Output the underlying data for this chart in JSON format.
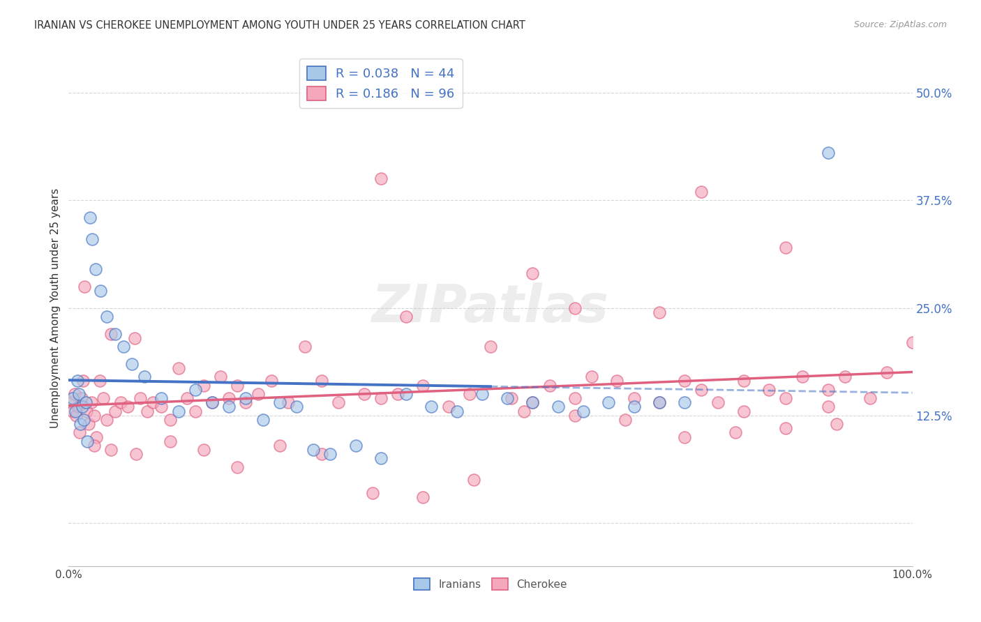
{
  "title": "IRANIAN VS CHEROKEE UNEMPLOYMENT AMONG YOUTH UNDER 25 YEARS CORRELATION CHART",
  "source": "Source: ZipAtlas.com",
  "ylabel": "Unemployment Among Youth under 25 years",
  "xlim": [
    0,
    100
  ],
  "ylim": [
    -5,
    55
  ],
  "yticks": [
    0,
    12.5,
    25.0,
    37.5,
    50.0
  ],
  "ytick_labels": [
    "",
    "12.5%",
    "25.0%",
    "37.5%",
    "50.0%"
  ],
  "grid_color": "#cccccc",
  "background_color": "#ffffff",
  "iranian_face_color": "#a8c8e8",
  "cherokee_face_color": "#f5a8bc",
  "iranian_edge_color": "#4472c4",
  "cherokee_edge_color": "#e06080",
  "watermark": "ZIPatlas",
  "R_iranian": 0.038,
  "N_iranian": 44,
  "R_cherokee": 0.186,
  "N_cherokee": 96,
  "iranian_x": [
    0.5,
    0.8,
    1.0,
    1.2,
    1.4,
    1.6,
    1.8,
    2.0,
    2.2,
    2.5,
    2.8,
    3.2,
    3.8,
    4.5,
    5.5,
    6.5,
    7.5,
    9.0,
    11.0,
    13.0,
    15.0,
    17.0,
    19.0,
    21.0,
    23.0,
    25.0,
    27.0,
    29.0,
    31.0,
    34.0,
    37.0,
    40.0,
    43.0,
    46.0,
    49.0,
    52.0,
    55.0,
    58.0,
    61.0,
    64.0,
    67.0,
    70.0,
    73.0,
    90.0
  ],
  "iranian_y": [
    14.5,
    13.0,
    16.5,
    15.0,
    11.5,
    13.5,
    12.0,
    14.0,
    9.5,
    35.5,
    33.0,
    29.5,
    27.0,
    24.0,
    22.0,
    20.5,
    18.5,
    17.0,
    14.5,
    13.0,
    15.5,
    14.0,
    13.5,
    14.5,
    12.0,
    14.0,
    13.5,
    8.5,
    8.0,
    9.0,
    7.5,
    15.0,
    13.5,
    13.0,
    15.0,
    14.5,
    14.0,
    13.5,
    13.0,
    14.0,
    13.5,
    14.0,
    14.0,
    43.0
  ],
  "cherokee_x": [
    0.3,
    0.5,
    0.7,
    0.9,
    1.1,
    1.3,
    1.5,
    1.7,
    1.9,
    2.1,
    2.4,
    2.7,
    3.0,
    3.3,
    3.7,
    4.1,
    4.5,
    5.0,
    5.5,
    6.2,
    7.0,
    7.8,
    8.5,
    9.3,
    10.0,
    11.0,
    12.0,
    13.0,
    14.0,
    15.0,
    16.0,
    17.0,
    18.0,
    19.0,
    20.0,
    21.0,
    22.5,
    24.0,
    26.0,
    28.0,
    30.0,
    32.0,
    35.0,
    37.0,
    39.0,
    42.0,
    45.0,
    47.5,
    50.0,
    52.5,
    55.0,
    57.0,
    60.0,
    62.0,
    65.0,
    67.0,
    70.0,
    73.0,
    75.0,
    77.0,
    80.0,
    83.0,
    85.0,
    87.0,
    90.0,
    92.0,
    95.0,
    97.0,
    100.0,
    3.0,
    5.0,
    8.0,
    12.0,
    16.0,
    20.0,
    25.0,
    30.0,
    36.0,
    42.0,
    48.0,
    54.0,
    60.0,
    66.0,
    73.0,
    79.0,
    85.0,
    91.0,
    37.0,
    75.0,
    85.0,
    55.0,
    40.0,
    60.0,
    70.0,
    80.0,
    90.0
  ],
  "cherokee_y": [
    14.0,
    13.0,
    15.0,
    12.5,
    13.5,
    10.5,
    14.5,
    16.5,
    27.5,
    13.0,
    11.5,
    14.0,
    12.5,
    10.0,
    16.5,
    14.5,
    12.0,
    22.0,
    13.0,
    14.0,
    13.5,
    21.5,
    14.5,
    13.0,
    14.0,
    13.5,
    12.0,
    18.0,
    14.5,
    13.0,
    16.0,
    14.0,
    17.0,
    14.5,
    16.0,
    14.0,
    15.0,
    16.5,
    14.0,
    20.5,
    16.5,
    14.0,
    15.0,
    14.5,
    15.0,
    16.0,
    13.5,
    15.0,
    20.5,
    14.5,
    14.0,
    16.0,
    14.5,
    17.0,
    16.5,
    14.5,
    14.0,
    16.5,
    15.5,
    14.0,
    16.5,
    15.5,
    14.5,
    17.0,
    15.5,
    17.0,
    14.5,
    17.5,
    21.0,
    9.0,
    8.5,
    8.0,
    9.5,
    8.5,
    6.5,
    9.0,
    8.0,
    3.5,
    3.0,
    5.0,
    13.0,
    12.5,
    12.0,
    10.0,
    10.5,
    11.0,
    11.5,
    40.0,
    38.5,
    32.0,
    29.0,
    24.0,
    25.0,
    24.5,
    13.0,
    13.5
  ]
}
